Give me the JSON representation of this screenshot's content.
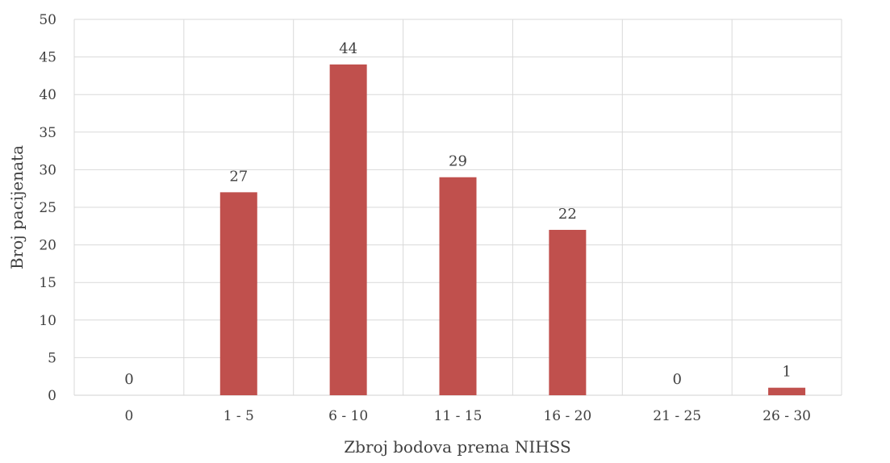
{
  "chart_data": {
    "type": "bar",
    "title": "",
    "xlabel": "Zbroj bodova prema NIHSS",
    "ylabel": "Broj pacijenata",
    "categories": [
      "0",
      "1 - 5",
      "6 - 10",
      "11 - 15",
      "16 - 20",
      "21 - 25",
      "26 - 30"
    ],
    "values": [
      0,
      27,
      44,
      29,
      22,
      0,
      1
    ],
    "ylim": [
      0,
      50
    ],
    "yticks": [
      0,
      5,
      10,
      15,
      20,
      25,
      30,
      35,
      40,
      45,
      50
    ],
    "grid": "horizontal and vertical",
    "data_labels": true,
    "legend": "none",
    "bar_color": "#c0504d"
  }
}
